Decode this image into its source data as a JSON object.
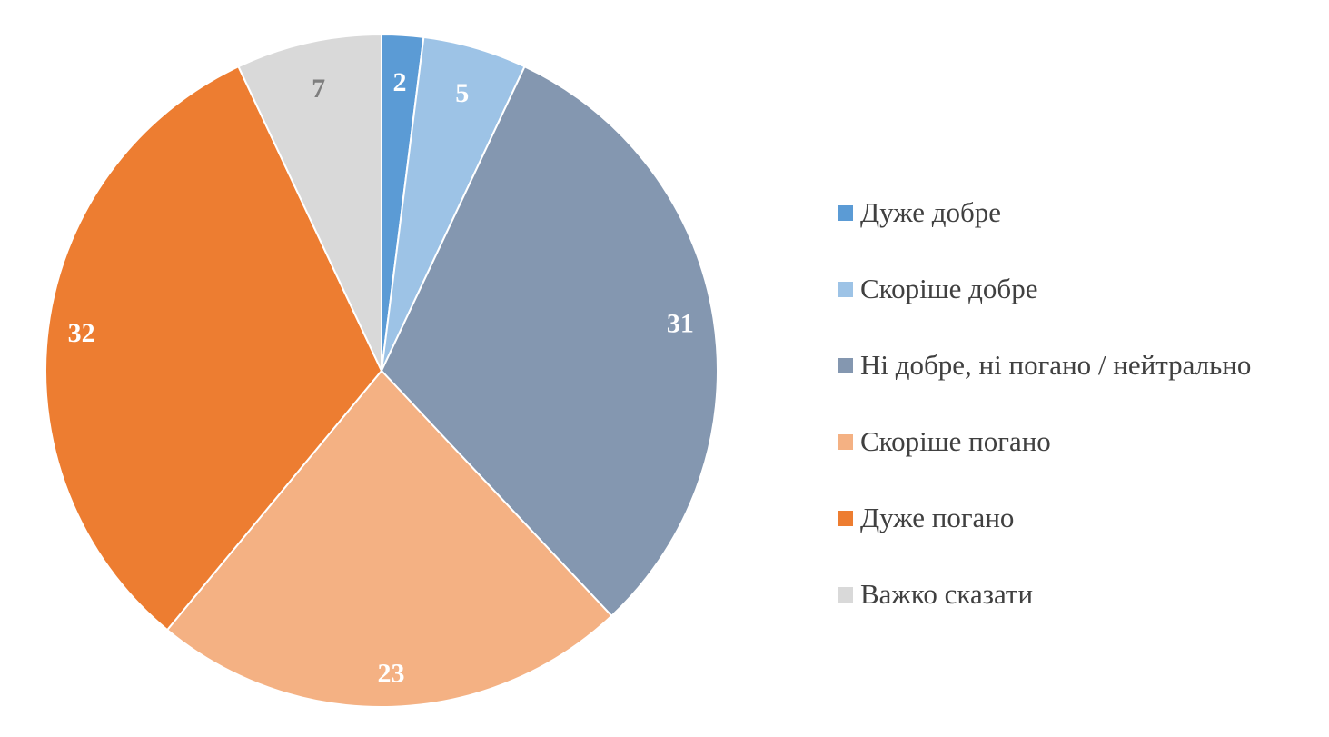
{
  "chart_data": {
    "type": "pie",
    "title": "",
    "legend_position": "right",
    "categories": [
      "Дуже добре",
      "Скоріше добре",
      "Ні добре, ні погано / нейтрально",
      "Скоріше погано",
      "Дуже погано",
      "Важко сказати"
    ],
    "values": [
      2,
      5,
      31,
      23,
      32,
      7
    ],
    "data_labels": [
      "2",
      "5",
      "31",
      "23",
      "32",
      "7"
    ],
    "colors": [
      "#5B9BD5",
      "#9DC3E6",
      "#8497B0",
      "#F4B183",
      "#ED7D31",
      "#D9D9D9"
    ],
    "label_colors": [
      "#FFFFFF",
      "#FFFFFF",
      "#FFFFFF",
      "#FFFFFF",
      "#FFFFFF",
      "#7F7F7F"
    ]
  }
}
